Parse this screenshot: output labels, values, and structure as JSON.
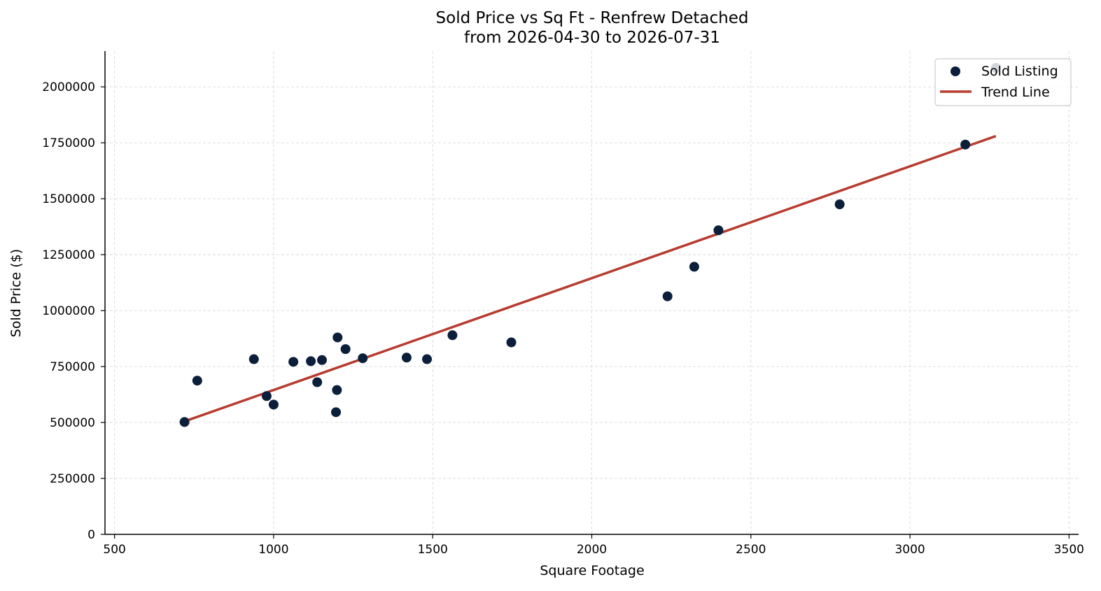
{
  "chart_data": {
    "type": "scatter",
    "title_line1": "Sold Price vs Sq Ft - Renfrew Detached",
    "title_line2": "from 2026-04-30 to 2026-07-31",
    "xlabel": "Square Footage",
    "ylabel": "Sold Price ($)",
    "xlim": [
      470,
      3530
    ],
    "ylim": [
      0,
      2160000
    ],
    "x_ticks": [
      500,
      1000,
      1500,
      2000,
      2500,
      3000,
      3500
    ],
    "x_tick_labels": [
      "500",
      "1000",
      "1500",
      "2000",
      "2500",
      "3000",
      "3500"
    ],
    "y_ticks": [
      0,
      250000,
      500000,
      750000,
      1000000,
      1250000,
      1500000,
      1750000,
      2000000
    ],
    "y_tick_labels": [
      "0",
      "250000",
      "500000",
      "750000",
      "1000000",
      "1250000",
      "1500000",
      "1750000",
      "2000000"
    ],
    "grid": true,
    "legend_position": "top-right",
    "colors": {
      "points": "#0b1f3a",
      "trend": "#b73c2f"
    },
    "series": [
      {
        "name": "Sold Listing",
        "type": "scatter",
        "points": [
          {
            "x": 720,
            "y": 502000
          },
          {
            "x": 760,
            "y": 687000
          },
          {
            "x": 938,
            "y": 783000
          },
          {
            "x": 978,
            "y": 618000
          },
          {
            "x": 1000,
            "y": 580000
          },
          {
            "x": 1062,
            "y": 771000
          },
          {
            "x": 1117,
            "y": 774000
          },
          {
            "x": 1137,
            "y": 680000
          },
          {
            "x": 1152,
            "y": 779000
          },
          {
            "x": 1196,
            "y": 546000
          },
          {
            "x": 1199,
            "y": 645000
          },
          {
            "x": 1201,
            "y": 880000
          },
          {
            "x": 1226,
            "y": 828000
          },
          {
            "x": 1280,
            "y": 787000
          },
          {
            "x": 1418,
            "y": 790000
          },
          {
            "x": 1482,
            "y": 783000
          },
          {
            "x": 1562,
            "y": 890000
          },
          {
            "x": 1747,
            "y": 858000
          },
          {
            "x": 2238,
            "y": 1064000
          },
          {
            "x": 2322,
            "y": 1196000
          },
          {
            "x": 2398,
            "y": 1359000
          },
          {
            "x": 2779,
            "y": 1475000
          },
          {
            "x": 3174,
            "y": 1742000
          },
          {
            "x": 3270,
            "y": 2085000
          }
        ]
      },
      {
        "name": "Trend Line",
        "type": "line",
        "points": [
          {
            "x": 720,
            "y": 505000
          },
          {
            "x": 3270,
            "y": 1780000
          }
        ]
      }
    ]
  }
}
